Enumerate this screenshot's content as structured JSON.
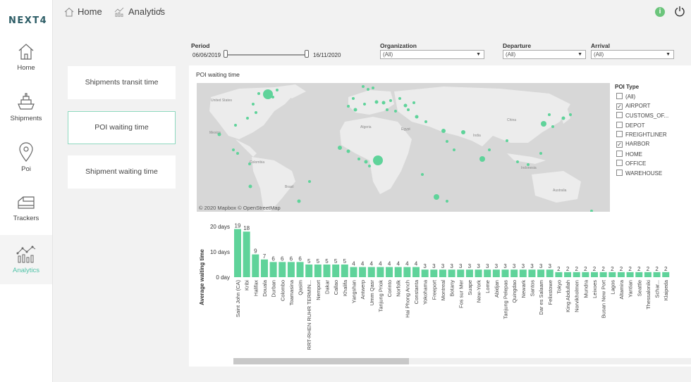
{
  "app": {
    "logo": "NEXT4"
  },
  "sidebar": {
    "items": [
      {
        "label": "Home",
        "icon": "home-icon"
      },
      {
        "label": "Shipments",
        "icon": "ship-icon"
      },
      {
        "label": "Poi",
        "icon": "map-pin-icon"
      },
      {
        "label": "Trackers",
        "icon": "tracker-icon"
      },
      {
        "label": "Analytics",
        "icon": "analytics-icon",
        "active": true
      }
    ]
  },
  "breadcrumb": {
    "home": "Home",
    "separator": "/",
    "current": "Analytics"
  },
  "cards": [
    {
      "label": "Shipments transit time",
      "active": false
    },
    {
      "label": "POI waiting time",
      "active": true
    },
    {
      "label": "Shipment waiting time",
      "active": false
    }
  ],
  "filters": {
    "period": {
      "label": "Period",
      "start": "06/06/2019",
      "end": "16/11/2020"
    },
    "organization": {
      "label": "Organization",
      "value": "(All)"
    },
    "departure": {
      "label": "Departure",
      "value": "(All)"
    },
    "arrival": {
      "label": "Arrival",
      "value": "(All)"
    }
  },
  "panel": {
    "title": "POI waiting time",
    "map_credit": "© 2020 Mapbox  © OpenStreetMap",
    "map_labels": [
      "United States",
      "Mexico",
      "Colombia",
      "Brasil",
      "Algeria",
      "Egypt",
      "India",
      "China",
      "Indonesia",
      "Australia"
    ]
  },
  "legend": {
    "title": "POI Type",
    "items": [
      {
        "label": "(All)",
        "checked": false
      },
      {
        "label": "AIRPORT",
        "checked": true
      },
      {
        "label": "CUSTOMS_OF...",
        "checked": false
      },
      {
        "label": "DEPOT",
        "checked": false
      },
      {
        "label": "FREIGHTLINER",
        "checked": false
      },
      {
        "label": "HARBOR",
        "checked": true
      },
      {
        "label": "HOME",
        "checked": false
      },
      {
        "label": "OFFICE",
        "checked": false
      },
      {
        "label": "WAREHOUSE",
        "checked": false
      }
    ]
  },
  "chart_data": {
    "type": "bar",
    "ylabel": "Average waiting time",
    "ylim": [
      0,
      20
    ],
    "yticks": [
      {
        "value": 0,
        "label": "0 day"
      },
      {
        "value": 10,
        "label": "10 days"
      },
      {
        "value": 20,
        "label": "20 days"
      }
    ],
    "bar_color": "#5fd39a",
    "categories": [
      "Saint John (CA)",
      "Kribi",
      "Halifax",
      "Douala",
      "Durban",
      "Colombo",
      "Toamasina",
      "Qasim",
      "RRT-RHEN RUHR TERMIN...",
      "Nemport",
      "Dakar",
      "Callao",
      "Khalifa",
      "Yangshan",
      "Antwerp",
      "Umm Qasr",
      "Tanjung Priok",
      "Corinto",
      "Norfolk",
      "Hai Phong Anch",
      "Constanta",
      "Yokohama",
      "Freeport",
      "Montreal",
      "Botany",
      "Fos sur Mer",
      "Suape",
      "New-York",
      "Lome",
      "Abidjan",
      "Tanjung Pelepas",
      "Quingdao",
      "Newark",
      "Santos",
      "Dar es Salaam",
      "Felixstowe",
      "Tokyo",
      "King Abdullah",
      "Norvikholmen",
      "Mundra",
      "Leixoes",
      "Busan New Port",
      "Lagos",
      "Altamira",
      "Yantian",
      "Seattle",
      "Thessaloniki",
      "Schar...",
      "Klaipeda"
    ],
    "values": [
      19,
      18,
      9,
      7,
      6,
      6,
      6,
      6,
      5,
      5,
      5,
      5,
      5,
      4,
      4,
      4,
      4,
      4,
      4,
      4,
      4,
      3,
      3,
      3,
      3,
      3,
      3,
      3,
      3,
      3,
      3,
      3,
      3,
      3,
      3,
      3,
      2,
      2,
      2,
      2,
      2,
      2,
      2,
      2,
      2,
      2,
      2,
      2,
      2
    ]
  }
}
